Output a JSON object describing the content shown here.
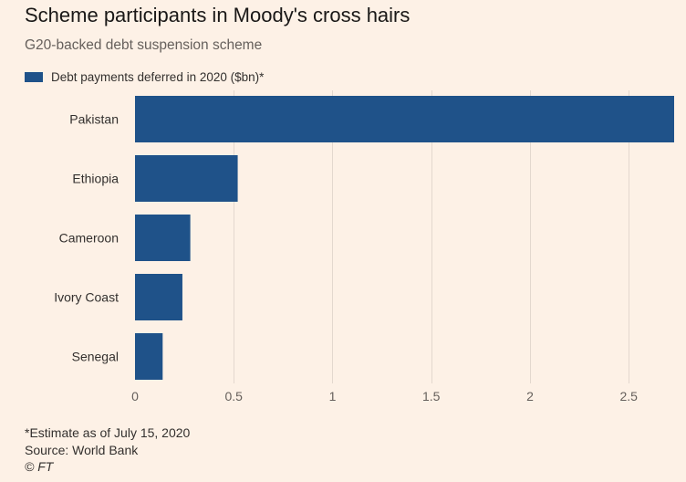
{
  "title": "Scheme participants in Moody's cross hairs",
  "subtitle": "G20-backed debt suspension scheme",
  "footer": {
    "note": "*Estimate as of July 15, 2020",
    "source": "Source: World Bank",
    "credit": "© FT"
  },
  "colors": {
    "bar": "#1f5289",
    "background": "#fdf1e6",
    "grid": "#e3d8ce",
    "text": "#33302e"
  },
  "chart_data": {
    "type": "bar",
    "orientation": "horizontal",
    "title": "Scheme participants in Moody's cross hairs",
    "subtitle": "G20-backed debt suspension scheme",
    "categories": [
      "Pakistan",
      "Ethiopia",
      "Cameroon",
      "Ivory Coast",
      "Senegal"
    ],
    "series": [
      {
        "name": "Debt payments deferred in 2020 ($bn)*",
        "values": [
          2.73,
          0.52,
          0.28,
          0.24,
          0.14
        ]
      }
    ],
    "xlim": [
      0,
      2.73
    ],
    "xticks": [
      0,
      0.5,
      1,
      1.5,
      2,
      2.5
    ],
    "xtick_labels": [
      "0",
      "0.5",
      "1",
      "1.5",
      "2",
      "2.5"
    ],
    "grid": "vertical",
    "legend": "top-left",
    "xlabel": "",
    "ylabel": ""
  }
}
